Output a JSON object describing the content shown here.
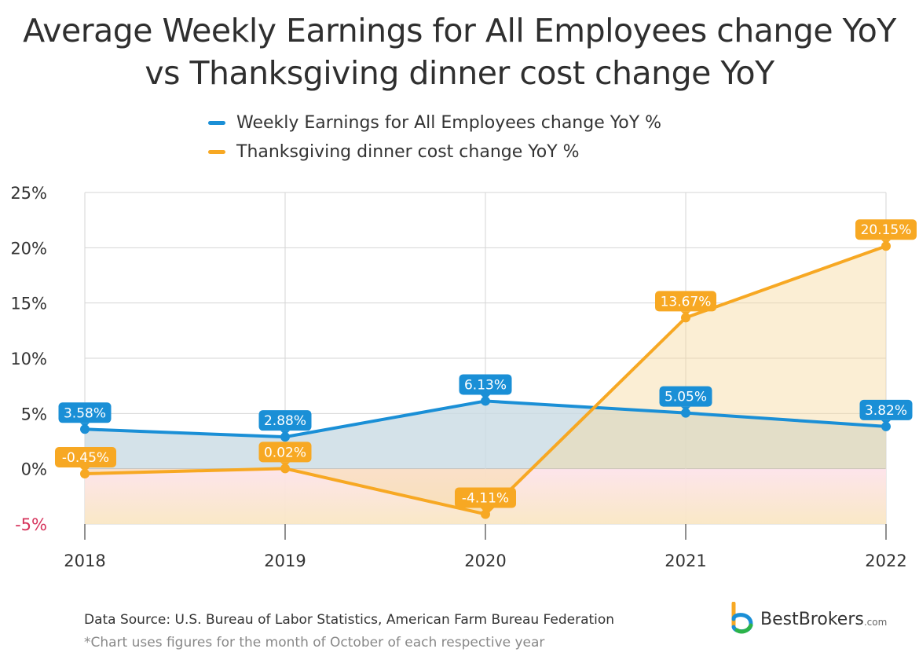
{
  "chart_data": {
    "type": "line",
    "title": "Average Weekly Earnings for All Employees change YoY",
    "subtitle": "vs Thanksgiving dinner cost change YoY",
    "x": [
      "2018",
      "2019",
      "2020",
      "2021",
      "2022"
    ],
    "series": [
      {
        "name": "Weekly Earnings for All Employees change YoY %",
        "color": "#1a8fd6",
        "values": [
          3.58,
          2.88,
          6.13,
          5.05,
          3.82
        ],
        "labels": [
          "3.58%",
          "2.88%",
          "6.13%",
          "5.05%",
          "3.82%"
        ]
      },
      {
        "name": "Thanksgiving dinner cost change YoY %",
        "color": "#f7a823",
        "values": [
          -0.45,
          0.02,
          -4.11,
          13.67,
          20.15
        ],
        "labels": [
          "-0.45%",
          "0.02%",
          "-4.11%",
          "13.67%",
          "20.15%"
        ]
      }
    ],
    "y_ticks": [
      {
        "value": 25,
        "label": "25%"
      },
      {
        "value": 20,
        "label": "20%"
      },
      {
        "value": 15,
        "label": "15%"
      },
      {
        "value": 10,
        "label": "10%"
      },
      {
        "value": 5,
        "label": "5%"
      },
      {
        "value": 0,
        "label": "0%"
      },
      {
        "value": -5,
        "label": "-5%"
      }
    ],
    "negative_tick_color": "#d6335b",
    "ylim": [
      -5,
      25
    ],
    "grid": true,
    "area_fill": true,
    "legend_position": "top"
  },
  "footer": {
    "source": "Data Source: U.S. Bureau of Labor Statistics, American Farm Bureau Federation",
    "note": "*Chart uses figures for the month of October of each respective year"
  },
  "brand": {
    "name": "BestBrokers",
    "suffix": ".com",
    "icon": "bestbrokers-logo-icon"
  }
}
